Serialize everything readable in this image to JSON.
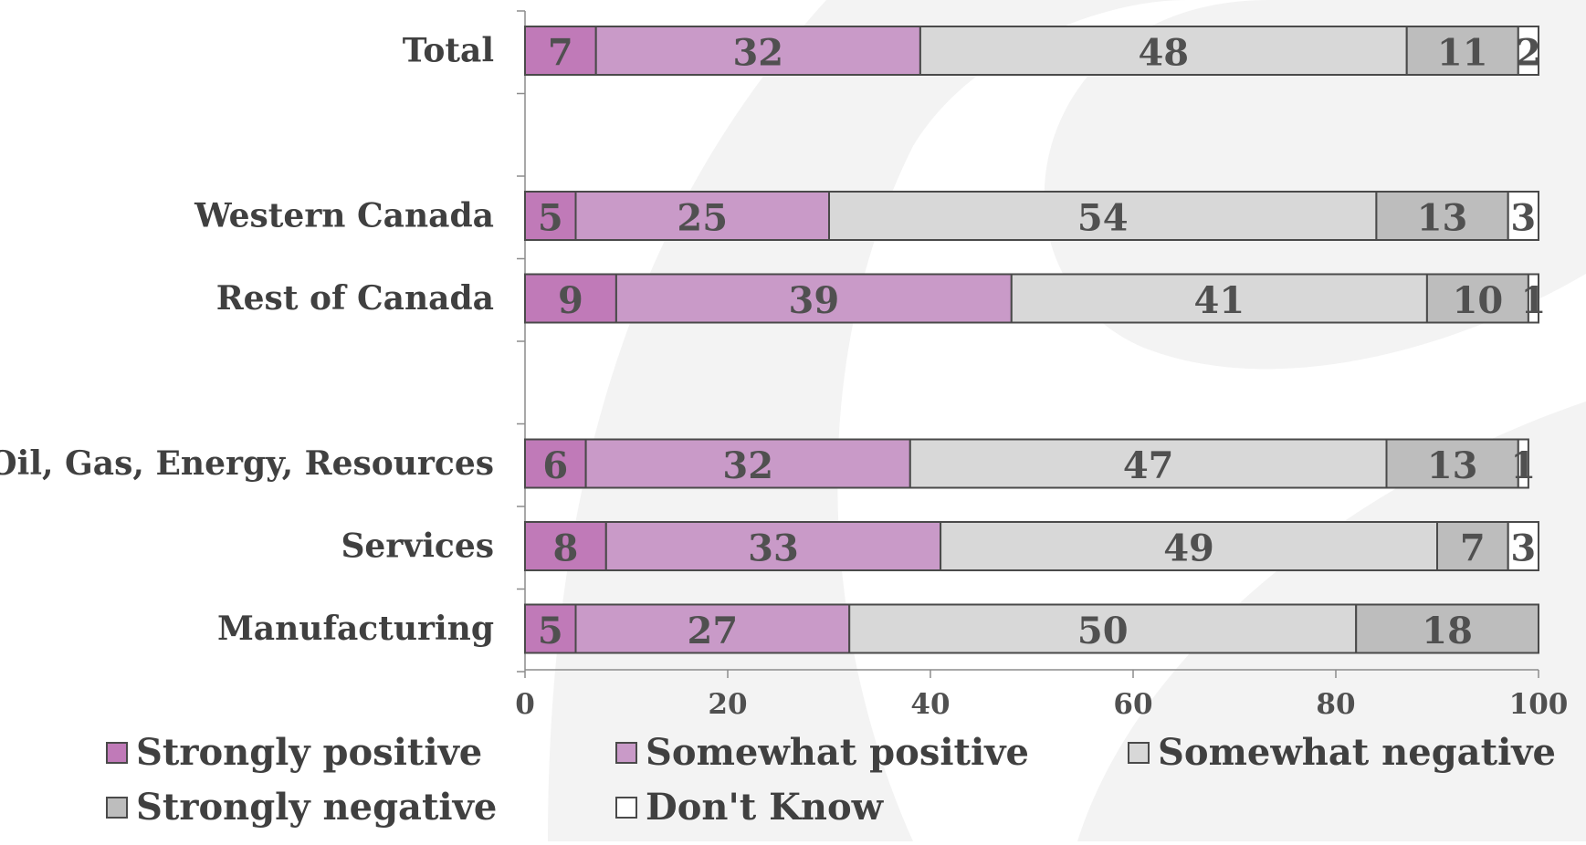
{
  "chart_data": {
    "type": "bar",
    "orientation": "horizontal",
    "stacked": true,
    "categories": [
      "Total",
      "Western Canada",
      "Rest of Canada",
      "Oil, Gas, Energy, Resources",
      "Services",
      "Manufacturing"
    ],
    "series": [
      {
        "name": "Strongly positive",
        "color": "#c07ab8",
        "values": [
          7,
          5,
          9,
          6,
          8,
          5
        ]
      },
      {
        "name": "Somewhat positive",
        "color": "#c99ac8",
        "values": [
          32,
          25,
          39,
          32,
          33,
          27
        ]
      },
      {
        "name": "Somewhat negative",
        "color": "#d8d8d8",
        "values": [
          48,
          54,
          41,
          47,
          49,
          50
        ]
      },
      {
        "name": "Strongly negative",
        "color": "#bdbdbd",
        "values": [
          11,
          13,
          10,
          13,
          7,
          18
        ]
      },
      {
        "name": "Don't Know",
        "color": "#ffffff",
        "values": [
          2,
          3,
          1,
          1,
          3,
          null
        ]
      }
    ],
    "xlim": [
      0,
      100
    ],
    "xticks": [
      "0",
      "20",
      "40",
      "60",
      "80",
      "100"
    ],
    "legend_position": "bottom",
    "grid": false
  }
}
